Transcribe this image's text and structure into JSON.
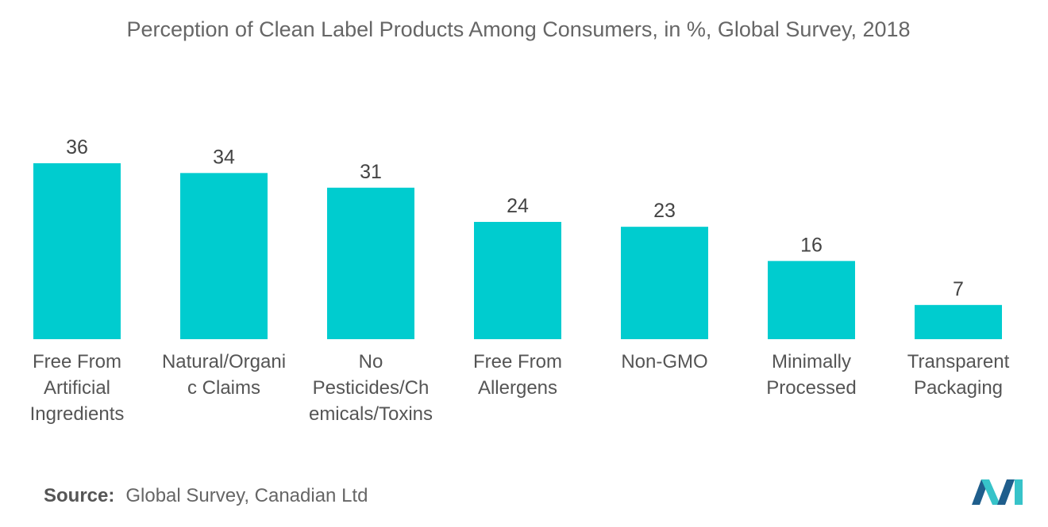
{
  "title": "Perception of Clean Label Products Among Consumers, in %, Global Survey, 2018",
  "source": {
    "label": "Source:",
    "text": "Global Survey, Canadian Ltd"
  },
  "logo": {
    "icon": "mordor-intelligence-logo-icon"
  },
  "colors": {
    "bar": "#00CCCF",
    "logo_dark": "#1F5E8C",
    "logo_light": "#37C3C9"
  },
  "chart_data": {
    "type": "bar",
    "categories": [
      "Free From Artificial Ingredients",
      "Natural/Organic Claims",
      "No Pesticides/Chemicals/Toxins",
      "Free From Allergens",
      "Non-GMO",
      "Minimally Processed",
      "Transparent Packaging"
    ],
    "category_lines": [
      [
        "Free From",
        "Artificial",
        "Ingredients"
      ],
      [
        "Natural/Organi",
        "c Claims"
      ],
      [
        "No",
        "Pesticides/Ch",
        "emicals/Toxins"
      ],
      [
        "Free From",
        "Allergens"
      ],
      [
        "Non-GMO"
      ],
      [
        "Minimally",
        "Processed"
      ],
      [
        "Transparent",
        "Packaging"
      ]
    ],
    "values": [
      36,
      34,
      31,
      24,
      23,
      16,
      7
    ],
    "title": "Perception of Clean Label Products Among Consumers, in %, Global Survey, 2018",
    "xlabel": "",
    "ylabel": "",
    "ylim": [
      0,
      36
    ],
    "grid": false,
    "legend": "none",
    "data_labels": true
  }
}
